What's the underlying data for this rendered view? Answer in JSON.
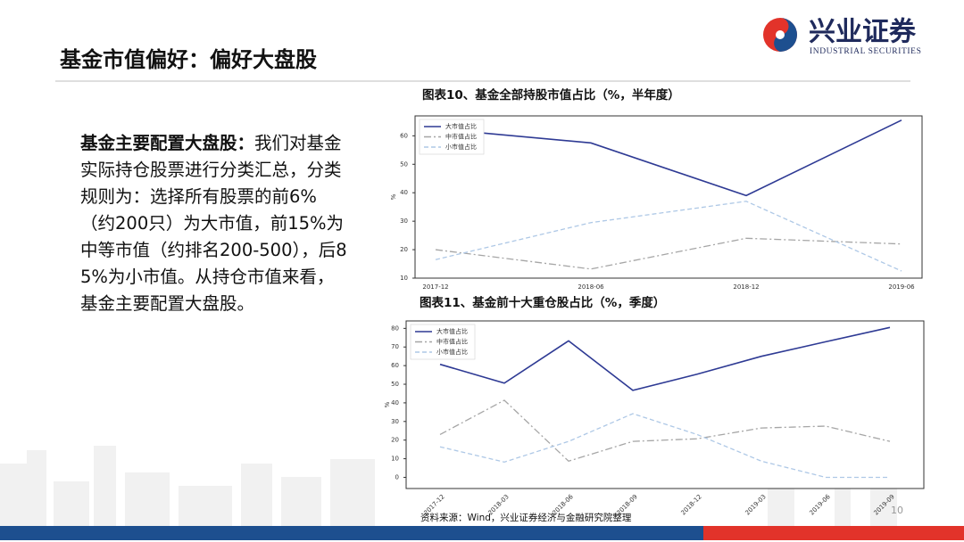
{
  "logo": {
    "name": "兴业证券",
    "subtitle": "INDUSTRIAL SECURITIES"
  },
  "title": "基金市值偏好：偏好大盘股",
  "body": {
    "lead": "基金主要配置大盘股：",
    "text": "我们对基金实际持仓股票进行分类汇总，分类规则为：选择所有股票的前6%（约200只）为大市值，前15%为中等市值（约排名200-500），后85%为小市值。从持仓市值来看，基金主要配置大盘股。"
  },
  "source": "资料来源：Wind，兴业证券经济与金融研究院整理",
  "page_number": 10,
  "chart_data": [
    {
      "type": "line",
      "title": "图表10、基金全部持股市值占比（%，半年度）",
      "ylabel": "%",
      "categories": [
        "2017-12",
        "2018-06",
        "2018-12",
        "2019-06"
      ],
      "ylim": [
        10,
        67
      ],
      "yticks": [
        10,
        20,
        30,
        40,
        50,
        60
      ],
      "legend": "upper left",
      "grid": false,
      "series": [
        {
          "name": "大市值占比",
          "color": "#2e3a94",
          "linestyle": "solid",
          "values": [
            62.5,
            57.5,
            39,
            65.5
          ]
        },
        {
          "name": "中市值占比",
          "color": "#a6a6a6",
          "linestyle": "dashdot",
          "values": [
            20,
            13.2,
            24,
            22
          ]
        },
        {
          "name": "小市值占比",
          "color": "#aec8e6",
          "linestyle": "dashed",
          "values": [
            16.5,
            29.5,
            37,
            12.5
          ]
        }
      ]
    },
    {
      "type": "line",
      "title": "图表11、基金前十大重仓股占比（%，季度）",
      "ylabel": "%",
      "categories": [
        "2017-12",
        "2018-03",
        "2018-06",
        "2018-09",
        "2018-12",
        "2019-03",
        "2019-06",
        "2019-09"
      ],
      "ylim": [
        -6,
        84
      ],
      "yticks": [
        0,
        10,
        20,
        30,
        40,
        50,
        60,
        70,
        80
      ],
      "legend": "upper left",
      "grid": false,
      "rotate_xlabels": true,
      "series": [
        {
          "name": "大市值占比",
          "color": "#2e3a94",
          "linestyle": "solid",
          "values": [
            60.7,
            50.6,
            73.3,
            46.7,
            55.4,
            65,
            72.8,
            80.5
          ]
        },
        {
          "name": "中市值占比",
          "color": "#a6a6a6",
          "linestyle": "dashdot",
          "values": [
            23,
            41.4,
            8.7,
            19.3,
            20.7,
            26.5,
            27.5,
            19.3
          ]
        },
        {
          "name": "小市值占比",
          "color": "#aec8e6",
          "linestyle": "dashed",
          "values": [
            16.4,
            8.2,
            19.3,
            34.2,
            23,
            8.7,
            0,
            0
          ]
        }
      ]
    }
  ]
}
